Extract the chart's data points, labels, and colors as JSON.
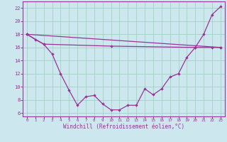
{
  "xlabel": "Windchill (Refroidissement éolien,°C)",
  "bg_color": "#cce8ee",
  "line_color": "#993399",
  "grid_color": "#99ccbb",
  "xlim": [
    -0.5,
    23.5
  ],
  "ylim": [
    5.5,
    23
  ],
  "yticks": [
    6,
    8,
    10,
    12,
    14,
    16,
    18,
    20,
    22
  ],
  "xticks": [
    0,
    1,
    2,
    3,
    4,
    5,
    6,
    7,
    8,
    9,
    10,
    11,
    12,
    13,
    14,
    15,
    16,
    17,
    18,
    19,
    20,
    21,
    22,
    23
  ],
  "series1_x": [
    0,
    1,
    2,
    3,
    4,
    5,
    6,
    7,
    8,
    9,
    10,
    11,
    12,
    13,
    14,
    15,
    16,
    17,
    18,
    19,
    20,
    21,
    22,
    23
  ],
  "series1_y": [
    18.0,
    17.2,
    16.5,
    15.0,
    12.0,
    9.5,
    7.2,
    8.5,
    8.7,
    7.4,
    6.5,
    6.5,
    7.2,
    7.2,
    9.7,
    8.8,
    9.7,
    11.5,
    12.0,
    14.5,
    16.0,
    18.0,
    21.0,
    22.2
  ],
  "series2_x": [
    0,
    23
  ],
  "series2_y": [
    18.0,
    16.0
  ],
  "series3_x": [
    0,
    2,
    10,
    20,
    22,
    23
  ],
  "series3_y": [
    18.0,
    16.5,
    16.2,
    16.0,
    16.0,
    16.0
  ]
}
